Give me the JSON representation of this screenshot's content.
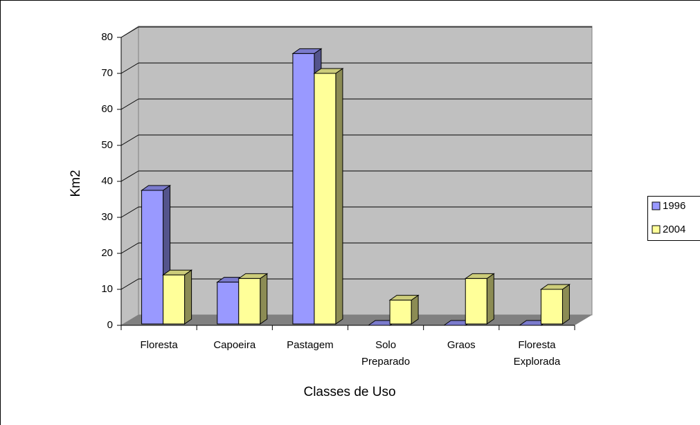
{
  "chart_data": {
    "type": "bar3d",
    "x_label": "Classes de Uso",
    "y_label": "Km2",
    "categories": [
      "Floresta",
      "Capoeira",
      "Pastagem",
      "Solo Preparado",
      "Graos",
      "Floresta Explorada"
    ],
    "series": [
      {
        "name": "1996",
        "color": "#9999ff",
        "values": [
          37.5,
          12,
          75.5,
          0,
          0,
          0
        ]
      },
      {
        "name": "2004",
        "color": "#ffff99",
        "values": [
          14,
          13,
          70,
          7,
          13,
          10
        ]
      }
    ],
    "ylim": [
      0,
      80
    ],
    "yticks": [
      0,
      10,
      20,
      30,
      40,
      50,
      60,
      70,
      80
    ],
    "grid": true,
    "legend": "right"
  }
}
